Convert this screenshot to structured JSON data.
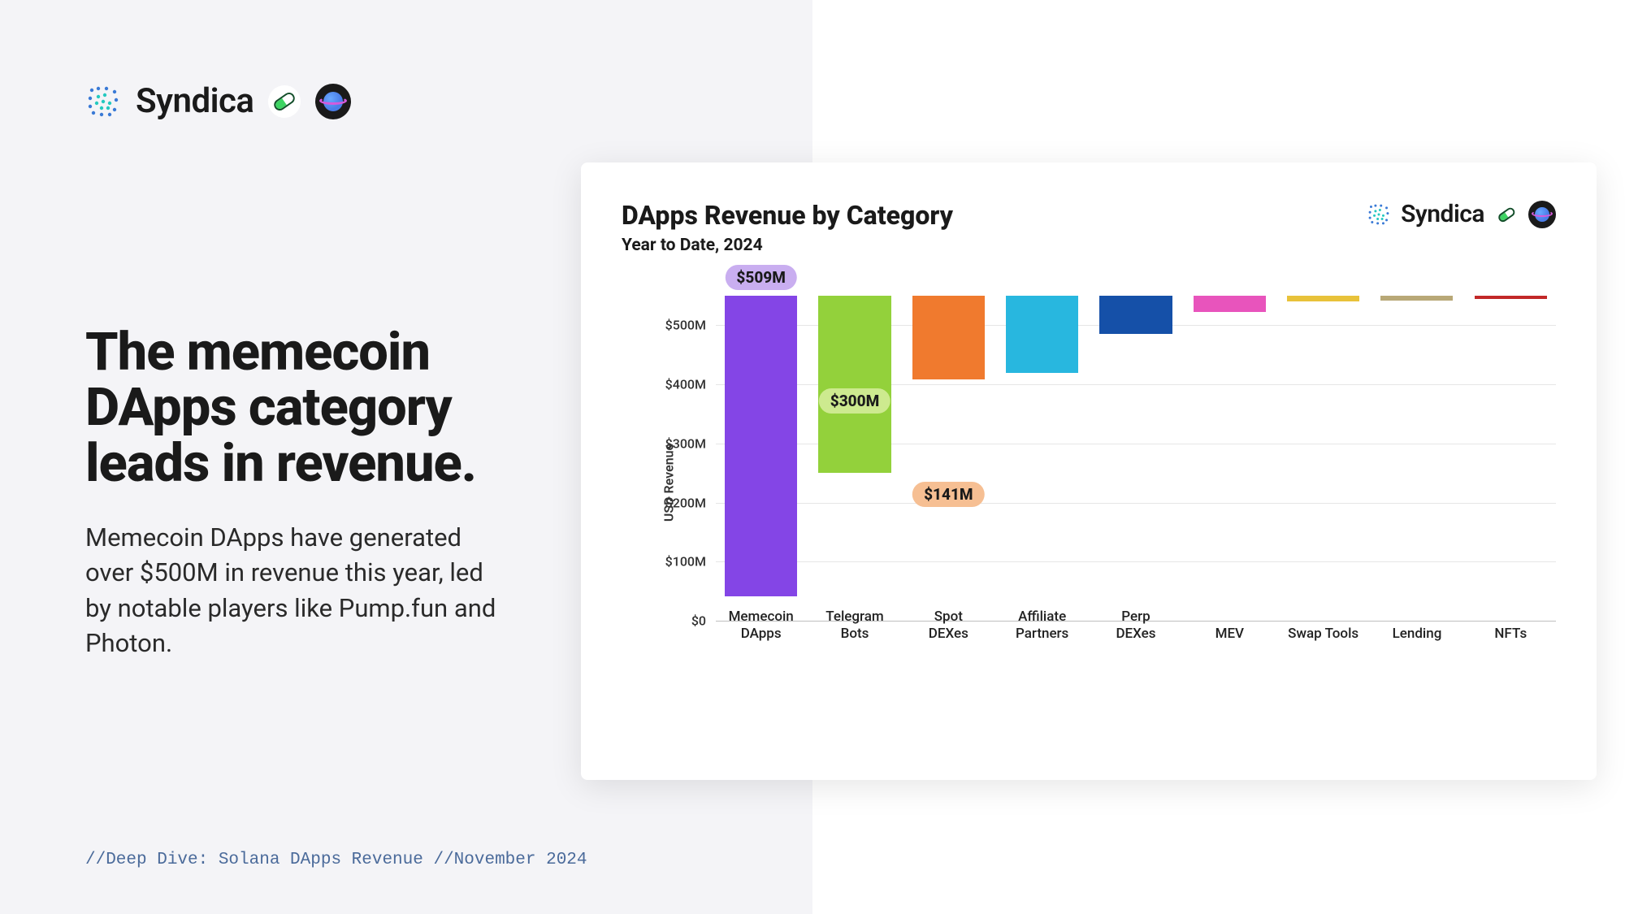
{
  "brand": {
    "name": "Syndica",
    "logo_color_a": "#3a7ad6",
    "logo_color_b": "#25c9c0"
  },
  "headline": "The memecoin DApps category leads in revenue.",
  "subtext": "Memecoin DApps have generated over $500M in revenue this year, led by notable players like Pump.fun and Photon.",
  "footer": "//Deep Dive: Solana DApps Revenue //November 2024",
  "chart": {
    "title": "DApps Revenue by Category",
    "subtitle": "Year to Date, 2024",
    "ylabel": "USD Revenue",
    "ylim": [
      0,
      550
    ],
    "yticks": [
      0,
      100,
      200,
      300,
      400,
      500
    ],
    "ytick_labels": [
      "$0",
      "$100M",
      "$200M",
      "$300M",
      "$400M",
      "$500M"
    ],
    "grid_color": "#e6e6e6",
    "background_color": "#ffffff",
    "bar_width_pct": 80,
    "title_fontsize": 32,
    "subtitle_fontsize": 21,
    "label_fontsize": 17,
    "categories": [
      {
        "label": "Memecoin\nDApps",
        "value": 509,
        "color": "#8445e6",
        "callout": "$509M",
        "callout_bg": "#c9aef0"
      },
      {
        "label": "Telegram\nBots",
        "value": 300,
        "color": "#93d13b",
        "callout": "$300M",
        "callout_bg": "#cdea8f"
      },
      {
        "label": "Spot\nDEXes",
        "value": 141,
        "color": "#f07a2e",
        "callout": "$141M",
        "callout_bg": "#f6bf93"
      },
      {
        "label": "Affiliate\nPartners",
        "value": 130,
        "color": "#28b7df"
      },
      {
        "label": "Perp\nDEXes",
        "value": 65,
        "color": "#1550a8"
      },
      {
        "label": "MEV",
        "value": 28,
        "color": "#e854bc"
      },
      {
        "label": "Swap Tools",
        "value": 10,
        "color": "#e8c23a"
      },
      {
        "label": "Lending",
        "value": 8,
        "color": "#b8a877"
      },
      {
        "label": "NFTs",
        "value": 6,
        "color": "#c22828"
      }
    ]
  }
}
